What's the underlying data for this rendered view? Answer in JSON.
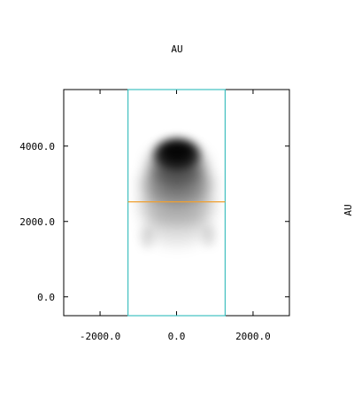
{
  "chart_data": {
    "type": "heatmap",
    "title": "AU",
    "xlabel": "",
    "ylabel": "AU",
    "xlim": [
      -2950,
      2950
    ],
    "ylim": [
      -500,
      5500
    ],
    "xticks": [
      -2000,
      0,
      2000
    ],
    "yticks": [
      0,
      2000,
      4000
    ],
    "xtick_labels": [
      "-2000.0",
      "0.0",
      "2000.0"
    ],
    "ytick_labels": [
      "0.0",
      "2000.0",
      "4000.0"
    ],
    "grid": false,
    "legend": "none",
    "colormap": "grayscale (white = low, black = high)",
    "box_region": {
      "x": [
        -1270,
        1270
      ],
      "y": [
        -500,
        5500
      ],
      "color": "#40c0c0"
    },
    "horizontal_line": {
      "y": 2520,
      "x": [
        -1270,
        1270
      ],
      "color": "#f0a030"
    },
    "intensity_peak": {
      "x": 0,
      "y": 3900
    }
  }
}
